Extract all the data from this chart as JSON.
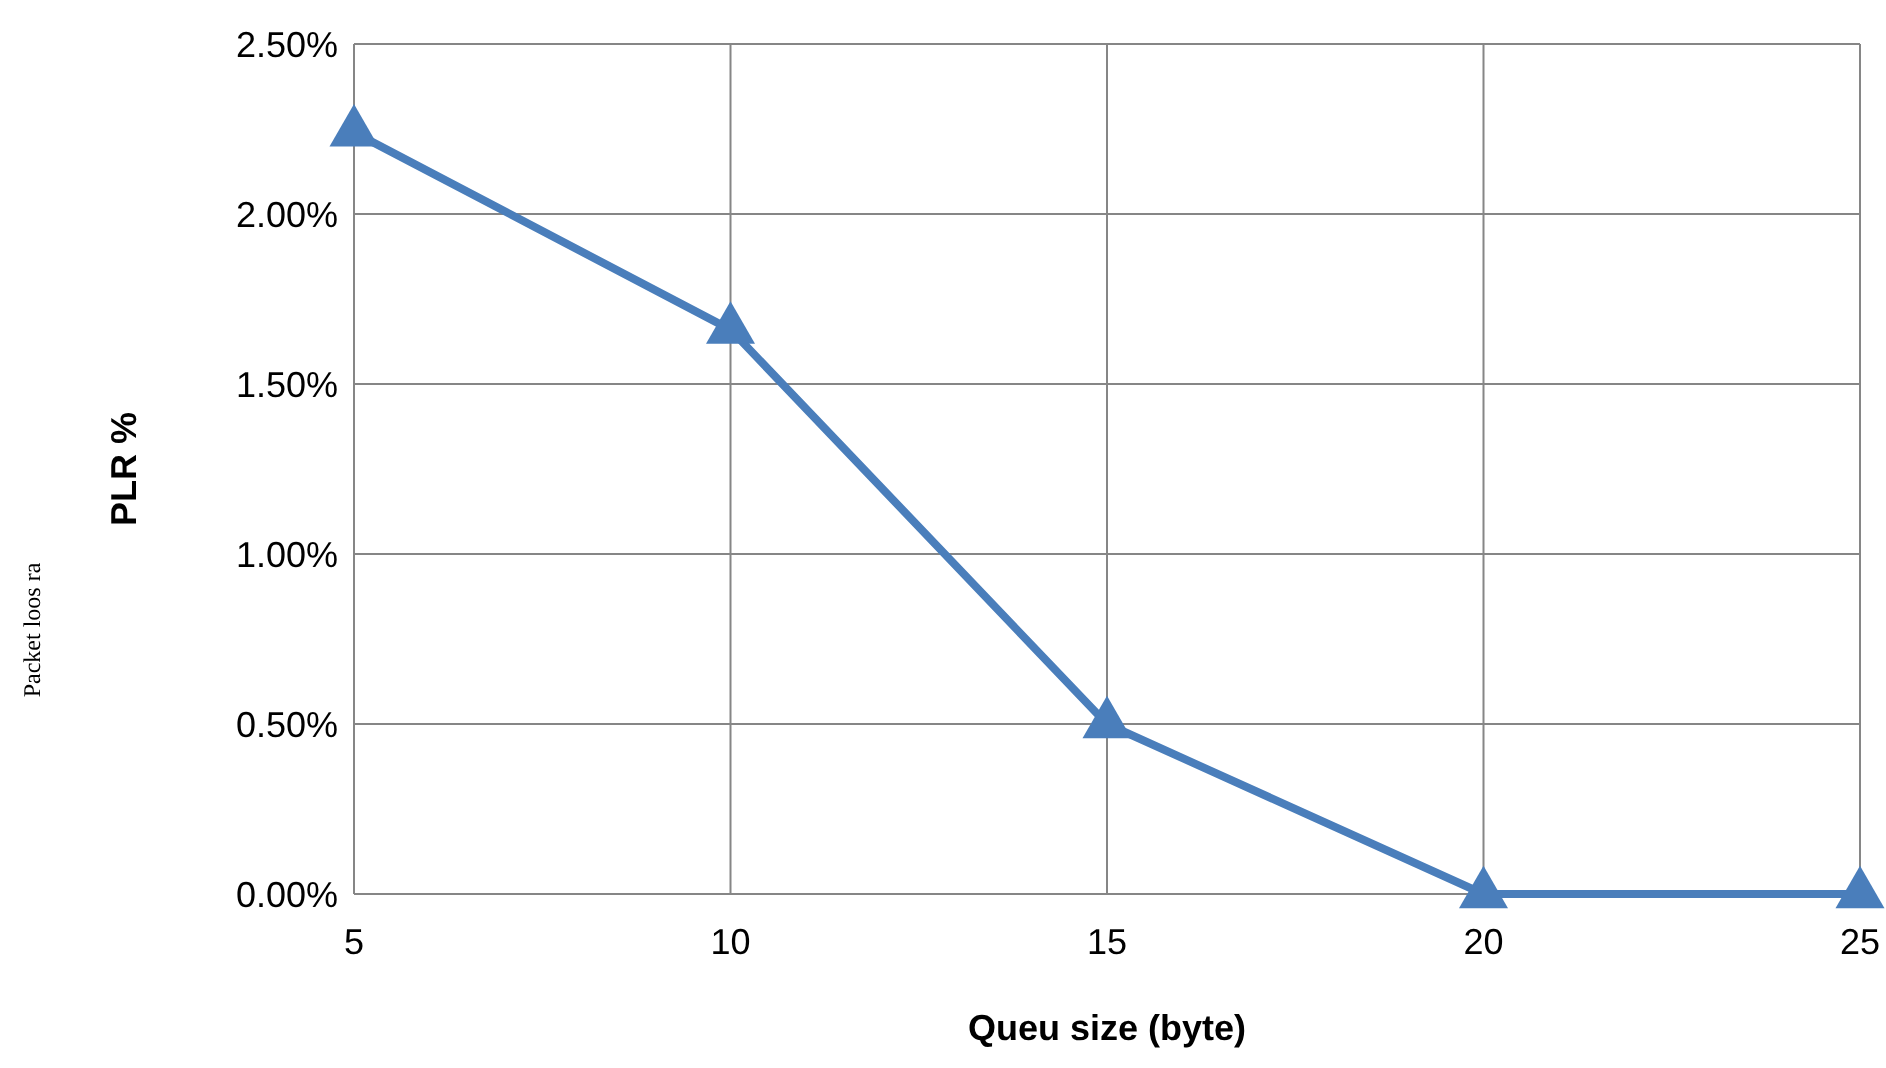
{
  "chart_data": {
    "type": "line",
    "xlabel": "Queu size (byte)",
    "ylabel": "PLR %",
    "annotations": [
      "Packet loos ra"
    ],
    "x": [
      5,
      10,
      15,
      20,
      25
    ],
    "series": [
      {
        "color": "#4a7ebb",
        "values": [
          2.24,
          1.66,
          0.5,
          0,
          0
        ]
      }
    ],
    "xlim": [
      5,
      25
    ],
    "xticks": [
      5,
      10,
      15,
      20,
      25
    ],
    "ylim": [
      0,
      2.5
    ],
    "yticks": [
      {
        "value": 0,
        "label": "0.00%"
      },
      {
        "value": 0.5,
        "label": "0.50%"
      },
      {
        "value": 1,
        "label": "1.00%"
      },
      {
        "value": 1.5,
        "label": "1.50%"
      },
      {
        "value": 2,
        "label": "2.00%"
      },
      {
        "value": 2.5,
        "label": "2.50%"
      }
    ],
    "grid": true,
    "marker": "triangle",
    "line_style": "solid"
  }
}
